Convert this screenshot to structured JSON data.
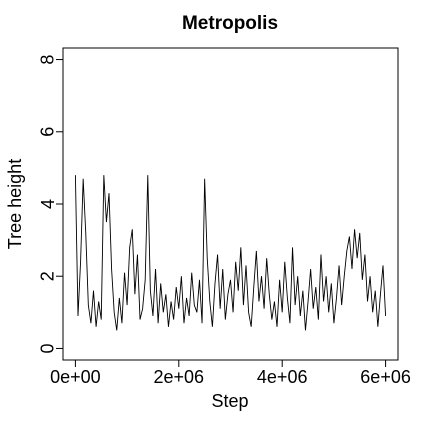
{
  "chart_data": {
    "type": "line",
    "title": "Metropolis",
    "x_label": "Step",
    "y_label": "Tree height",
    "xlim": [
      -240000,
      6240000
    ],
    "ylim": [
      -0.32,
      8.32
    ],
    "xticks": [
      {
        "value": 0,
        "label": "0e+00"
      },
      {
        "value": 2000000,
        "label": "2e+06"
      },
      {
        "value": 4000000,
        "label": "4e+06"
      },
      {
        "value": 6000000,
        "label": "6e+06"
      }
    ],
    "yticks": [
      0,
      2,
      4,
      6,
      8
    ],
    "series": [
      {
        "color": "#000000",
        "x": [
          0,
          50000,
          100000,
          150000,
          200000,
          250000,
          300000,
          350000,
          400000,
          450000,
          500000,
          550000,
          600000,
          650000,
          700000,
          750000,
          800000,
          850000,
          900000,
          950000,
          1000000,
          1050000,
          1100000,
          1150000,
          1200000,
          1250000,
          1300000,
          1350000,
          1400000,
          1450000,
          1500000,
          1550000,
          1600000,
          1650000,
          1700000,
          1750000,
          1800000,
          1850000,
          1900000,
          1950000,
          2000000,
          2050000,
          2100000,
          2150000,
          2200000,
          2250000,
          2300000,
          2350000,
          2400000,
          2450000,
          2500000,
          2550000,
          2600000,
          2650000,
          2700000,
          2750000,
          2800000,
          2850000,
          2900000,
          2950000,
          3000000,
          3050000,
          3100000,
          3150000,
          3200000,
          3250000,
          3300000,
          3350000,
          3400000,
          3450000,
          3500000,
          3550000,
          3600000,
          3650000,
          3700000,
          3750000,
          3800000,
          3850000,
          3900000,
          3950000,
          4000000,
          4050000,
          4100000,
          4150000,
          4200000,
          4250000,
          4300000,
          4350000,
          4400000,
          4450000,
          4500000,
          4550000,
          4600000,
          4650000,
          4700000,
          4750000,
          4800000,
          4850000,
          4900000,
          4950000,
          5000000,
          5050000,
          5100000,
          5150000,
          5200000,
          5250000,
          5300000,
          5350000,
          5400000,
          5450000,
          5500000,
          5550000,
          5600000,
          5650000,
          5700000,
          5750000,
          5800000,
          5850000,
          5900000,
          5950000,
          6000000
        ],
        "values": [
          4.8,
          0.9,
          2.4,
          4.7,
          3.2,
          1.2,
          0.7,
          1.6,
          0.6,
          1.3,
          0.8,
          4.8,
          3.5,
          4.3,
          2.2,
          1.0,
          0.5,
          1.4,
          0.7,
          2.1,
          1.2,
          2.8,
          3.3,
          1.5,
          2.6,
          0.8,
          1.1,
          1.9,
          4.8,
          1.6,
          0.9,
          2.2,
          0.7,
          1.8,
          1.0,
          1.5,
          0.6,
          1.3,
          0.8,
          1.7,
          1.1,
          2.0,
          0.7,
          1.4,
          0.9,
          2.1,
          1.2,
          1.0,
          1.9,
          0.7,
          4.7,
          2.5,
          1.3,
          0.6,
          1.8,
          2.6,
          1.1,
          2.2,
          0.8,
          1.5,
          1.9,
          1.0,
          2.4,
          1.6,
          2.8,
          1.2,
          2.3,
          1.0,
          0.6,
          1.7,
          2.7,
          1.3,
          2.0,
          1.1,
          2.5,
          1.5,
          0.8,
          1.3,
          0.6,
          1.9,
          1.0,
          2.4,
          1.4,
          0.7,
          2.8,
          1.2,
          2.0,
          0.9,
          1.6,
          0.5,
          1.3,
          2.2,
          1.1,
          1.7,
          0.8,
          2.6,
          1.3,
          2.0,
          1.0,
          1.8,
          0.7,
          1.4,
          2.3,
          1.2,
          2.0,
          2.7,
          3.1,
          2.2,
          3.3,
          2.5,
          3.2,
          1.9,
          2.6,
          1.3,
          2.0,
          1.0,
          1.6,
          0.6,
          1.5,
          2.3,
          0.9
        ]
      }
    ]
  }
}
